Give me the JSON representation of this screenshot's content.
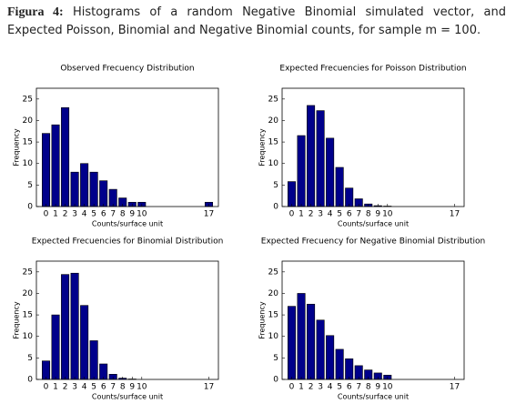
{
  "caption": {
    "label": "Figura 4:",
    "text": "Histograms of a random Negative Binomial simulated vector, and Expected Poisson, Binomial and Negative Binomial counts, for sample m = 100."
  },
  "chart_data": [
    {
      "type": "bar",
      "title": "Observed Frecuency Distribution",
      "xlabel": "Counts/surface unit",
      "ylabel": "Frequency",
      "x": [
        0,
        1,
        2,
        3,
        4,
        5,
        6,
        7,
        8,
        9,
        10,
        17
      ],
      "values": [
        17,
        19,
        23,
        8,
        10,
        8,
        6,
        4,
        2,
        1,
        1,
        1
      ],
      "color": "#00008b",
      "xlim": [
        -1,
        18
      ],
      "xticks": [
        0,
        1,
        2,
        3,
        4,
        5,
        6,
        7,
        8,
        9,
        10,
        17
      ],
      "ylim": [
        0,
        27.5
      ],
      "yticks": [
        0,
        5,
        10,
        15,
        20,
        25
      ]
    },
    {
      "type": "bar",
      "title": "Expected Frecuencies for Poisson Distribution",
      "xlabel": "Counts/surface unit",
      "ylabel": "Frequency",
      "x": [
        0,
        1,
        2,
        3,
        4,
        5,
        6,
        7,
        8,
        9,
        10
      ],
      "values": [
        5.8,
        16.5,
        23.5,
        22.3,
        15.9,
        9.1,
        4.3,
        1.8,
        0.6,
        0.2,
        0.1
      ],
      "color": "#00008b",
      "xlim": [
        -1,
        18
      ],
      "xticks": [
        0,
        1,
        2,
        3,
        4,
        5,
        6,
        7,
        8,
        9,
        10,
        17
      ],
      "ylim": [
        0,
        27.5
      ],
      "yticks": [
        0,
        5,
        10,
        15,
        20,
        25
      ]
    },
    {
      "type": "bar",
      "title": "Expected Frecuencies for Binomial Distribution",
      "xlabel": "Counts/surface unit",
      "ylabel": "Frequency",
      "x": [
        0,
        1,
        2,
        3,
        4,
        5,
        6,
        7,
        8,
        9
      ],
      "values": [
        4.3,
        15,
        24.4,
        24.7,
        17.2,
        9,
        3.6,
        1.2,
        0.3,
        0.1
      ],
      "color": "#00008b",
      "xlim": [
        -1,
        18
      ],
      "xticks": [
        0,
        1,
        2,
        3,
        4,
        5,
        6,
        7,
        8,
        9,
        10,
        17
      ],
      "ylim": [
        0,
        27.5
      ],
      "yticks": [
        0,
        5,
        10,
        15,
        20,
        25
      ]
    },
    {
      "type": "bar",
      "title": "Expected Frecuency for Negative Binomial Distribution",
      "xlabel": "Counts/surface unit",
      "ylabel": "Frequency",
      "x": [
        0,
        1,
        2,
        3,
        4,
        5,
        6,
        7,
        8,
        9,
        10
      ],
      "values": [
        17,
        20,
        17.5,
        13.8,
        10.2,
        7,
        4.8,
        3.2,
        2.2,
        1.5,
        1
      ],
      "color": "#00008b",
      "xlim": [
        -1,
        18
      ],
      "xticks": [
        0,
        1,
        2,
        3,
        4,
        5,
        6,
        7,
        8,
        9,
        10,
        17
      ],
      "ylim": [
        0,
        27.5
      ],
      "yticks": [
        0,
        5,
        10,
        15,
        20,
        25
      ]
    }
  ]
}
